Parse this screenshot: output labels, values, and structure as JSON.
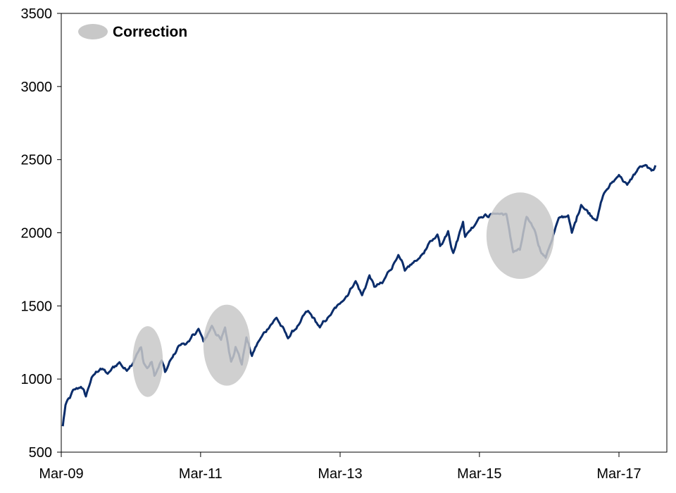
{
  "chart_data": {
    "type": "line",
    "title": "",
    "xlabel": "",
    "ylabel": "",
    "ylim": [
      500,
      3500
    ],
    "yticks": [
      500,
      1000,
      1500,
      2000,
      2500,
      3000,
      3500
    ],
    "xlim": [
      "2009-03",
      "2017-09"
    ],
    "xticks": [
      "Mar-09",
      "Mar-11",
      "Mar-13",
      "Mar-15",
      "Mar-17"
    ],
    "grid": false,
    "legend": {
      "placement": "top-left",
      "entries": [
        {
          "label": "Correction",
          "marker": "grey-ellipse"
        }
      ]
    },
    "colors": {
      "line": "#0B2D6B",
      "correction": "#C8C8C8",
      "axis": "#000000"
    },
    "series": [
      {
        "points": [
          [
            "2009-03-09",
            677
          ],
          [
            "2009-03-23",
            822
          ],
          [
            "2009-04-15",
            870
          ],
          [
            "2009-05-08",
            929
          ],
          [
            "2009-06-12",
            946
          ],
          [
            "2009-07-08",
            881
          ],
          [
            "2009-08-07",
            1010
          ],
          [
            "2009-09-22",
            1071
          ],
          [
            "2009-10-30",
            1036
          ],
          [
            "2009-12-31",
            1115
          ],
          [
            "2010-02-08",
            1056
          ],
          [
            "2010-03-31",
            1169
          ],
          [
            "2010-04-23",
            1217
          ],
          [
            "2010-05-07",
            1110
          ],
          [
            "2010-05-25",
            1074
          ],
          [
            "2010-06-18",
            1117
          ],
          [
            "2010-07-02",
            1022
          ],
          [
            "2010-08-09",
            1127
          ],
          [
            "2010-08-27",
            1048
          ],
          [
            "2010-09-30",
            1141
          ],
          [
            "2010-11-05",
            1225
          ],
          [
            "2010-12-31",
            1258
          ],
          [
            "2011-02-18",
            1343
          ],
          [
            "2011-03-16",
            1257
          ],
          [
            "2011-04-29",
            1364
          ],
          [
            "2011-06-16",
            1268
          ],
          [
            "2011-07-07",
            1353
          ],
          [
            "2011-08-08",
            1119
          ],
          [
            "2011-08-31",
            1219
          ],
          [
            "2011-10-03",
            1099
          ],
          [
            "2011-10-27",
            1285
          ],
          [
            "2011-11-25",
            1158
          ],
          [
            "2011-12-30",
            1258
          ],
          [
            "2012-02-29",
            1366
          ],
          [
            "2012-04-02",
            1419
          ],
          [
            "2012-06-01",
            1278
          ],
          [
            "2012-07-31",
            1379
          ],
          [
            "2012-09-14",
            1466
          ],
          [
            "2012-11-15",
            1353
          ],
          [
            "2012-12-31",
            1426
          ],
          [
            "2013-02-28",
            1515
          ],
          [
            "2013-05-21",
            1669
          ],
          [
            "2013-06-24",
            1573
          ],
          [
            "2013-08-02",
            1709
          ],
          [
            "2013-08-27",
            1631
          ],
          [
            "2013-10-08",
            1655
          ],
          [
            "2013-12-31",
            1848
          ],
          [
            "2014-02-03",
            1741
          ],
          [
            "2014-04-11",
            1815
          ],
          [
            "2014-07-24",
            1988
          ],
          [
            "2014-08-07",
            1909
          ],
          [
            "2014-09-18",
            2011
          ],
          [
            "2014-10-15",
            1862
          ],
          [
            "2014-12-05",
            2075
          ],
          [
            "2014-12-16",
            1972
          ],
          [
            "2015-02-27",
            2104
          ],
          [
            "2015-05-21",
            2131
          ],
          [
            "2015-07-20",
            2128
          ],
          [
            "2015-08-25",
            1867
          ],
          [
            "2015-09-29",
            1884
          ],
          [
            "2015-11-03",
            2109
          ],
          [
            "2015-12-14",
            2021
          ],
          [
            "2016-01-20",
            1859
          ],
          [
            "2016-02-11",
            1829
          ],
          [
            "2016-04-20",
            2102
          ],
          [
            "2016-06-08",
            2119
          ],
          [
            "2016-06-27",
            2000
          ],
          [
            "2016-08-15",
            2190
          ],
          [
            "2016-11-04",
            2085
          ],
          [
            "2016-12-13",
            2271
          ],
          [
            "2017-03-01",
            2395
          ],
          [
            "2017-04-13",
            2328
          ],
          [
            "2017-06-19",
            2453
          ],
          [
            "2017-08-10",
            2438
          ],
          [
            "2017-08-18",
            2425
          ],
          [
            "2017-09-08",
            2461
          ]
        ]
      }
    ],
    "corrections": [
      {
        "start": "2010-04-23",
        "end": "2010-07-02"
      },
      {
        "start": "2011-04-29",
        "end": "2011-10-03"
      },
      {
        "start": "2015-05-21",
        "end": "2016-02-11"
      }
    ]
  }
}
